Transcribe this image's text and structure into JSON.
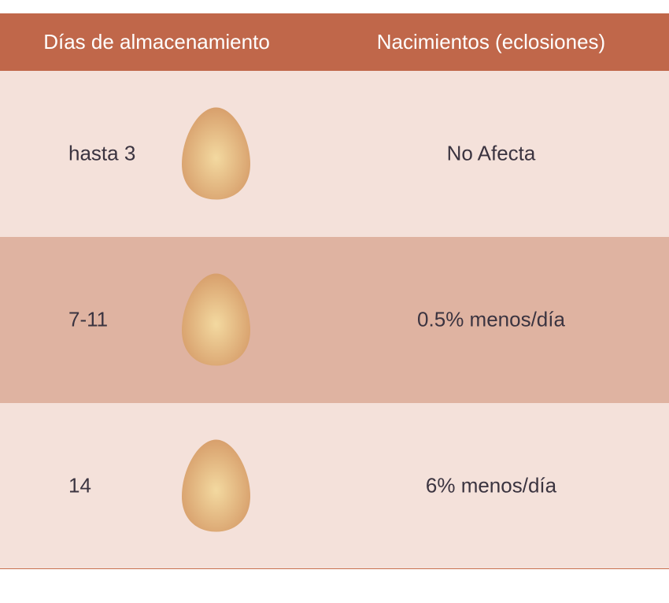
{
  "header": {
    "col_days": "Días de almacenamiento",
    "col_hatch": "Nacimientos (eclosiones)"
  },
  "rows": [
    {
      "days": "hasta 3",
      "hatch": "No Afecta",
      "icon": "egg-icon"
    },
    {
      "days": "7-11",
      "hatch": "0.5% menos/día",
      "icon": "egg-icon"
    },
    {
      "days": "14",
      "hatch": "6% menos/día",
      "icon": "egg-icon"
    }
  ],
  "colors": {
    "header_bg": "#c0674a",
    "row_light": "#f4e1da",
    "row_dark": "#dfb3a1",
    "egg": "#d9a26f"
  }
}
